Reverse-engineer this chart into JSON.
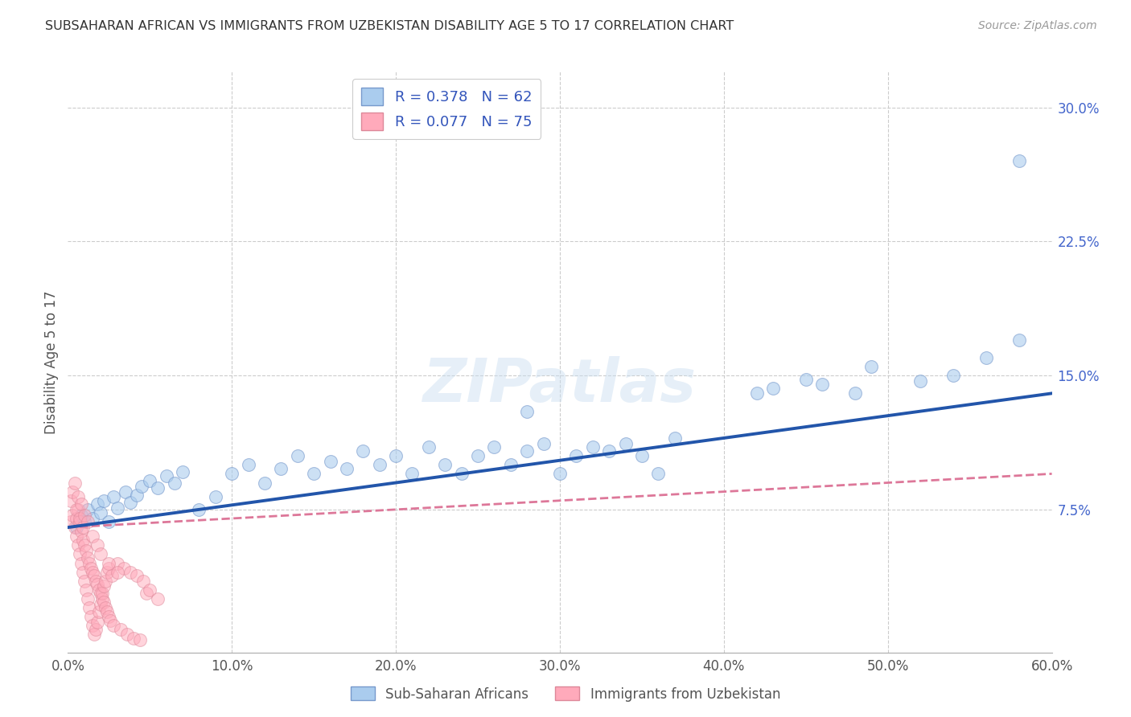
{
  "title": "SUBSAHARAN AFRICAN VS IMMIGRANTS FROM UZBEKISTAN DISABILITY AGE 5 TO 17 CORRELATION CHART",
  "source": "Source: ZipAtlas.com",
  "ylabel": "Disability Age 5 to 17",
  "xlim": [
    0.0,
    0.6
  ],
  "ylim": [
    -0.005,
    0.32
  ],
  "xtick_labels": [
    "0.0%",
    "10.0%",
    "20.0%",
    "30.0%",
    "40.0%",
    "50.0%",
    "60.0%"
  ],
  "xtick_vals": [
    0.0,
    0.1,
    0.2,
    0.3,
    0.4,
    0.5,
    0.6
  ],
  "ytick_labels_right": [
    "7.5%",
    "15.0%",
    "22.5%",
    "30.0%"
  ],
  "ytick_vals_right": [
    0.075,
    0.15,
    0.225,
    0.3
  ],
  "background_color": "#ffffff",
  "grid_color": "#cccccc",
  "blue_color": "#aaccee",
  "blue_edge_color": "#7799cc",
  "pink_color": "#ffaabb",
  "pink_edge_color": "#dd8899",
  "blue_line_color": "#2255aa",
  "pink_line_color": "#dd7799",
  "legend_blue_label": "R = 0.378   N = 62",
  "legend_pink_label": "R = 0.077   N = 75",
  "legend1_label": "Sub-Saharan Africans",
  "legend2_label": "Immigrants from Uzbekistan",
  "watermark": "ZIPatlas",
  "blue_scatter_x": [
    0.005,
    0.008,
    0.01,
    0.012,
    0.015,
    0.018,
    0.02,
    0.022,
    0.025,
    0.028,
    0.03,
    0.035,
    0.038,
    0.042,
    0.045,
    0.05,
    0.055,
    0.06,
    0.065,
    0.07,
    0.08,
    0.09,
    0.1,
    0.11,
    0.12,
    0.13,
    0.14,
    0.15,
    0.16,
    0.17,
    0.18,
    0.19,
    0.2,
    0.21,
    0.22,
    0.23,
    0.24,
    0.25,
    0.26,
    0.27,
    0.28,
    0.29,
    0.3,
    0.31,
    0.32,
    0.33,
    0.34,
    0.35,
    0.36,
    0.37,
    0.42,
    0.43,
    0.45,
    0.46,
    0.48,
    0.49,
    0.52,
    0.54,
    0.56,
    0.58,
    0.28,
    0.58
  ],
  "blue_scatter_y": [
    0.065,
    0.072,
    0.068,
    0.075,
    0.07,
    0.078,
    0.073,
    0.08,
    0.068,
    0.082,
    0.076,
    0.085,
    0.079,
    0.083,
    0.088,
    0.091,
    0.087,
    0.094,
    0.09,
    0.096,
    0.075,
    0.082,
    0.095,
    0.1,
    0.09,
    0.098,
    0.105,
    0.095,
    0.102,
    0.098,
    0.108,
    0.1,
    0.105,
    0.095,
    0.11,
    0.1,
    0.095,
    0.105,
    0.11,
    0.1,
    0.108,
    0.112,
    0.095,
    0.105,
    0.11,
    0.108,
    0.112,
    0.105,
    0.095,
    0.115,
    0.14,
    0.143,
    0.148,
    0.145,
    0.14,
    0.155,
    0.147,
    0.15,
    0.16,
    0.17,
    0.13,
    0.27
  ],
  "pink_scatter_x": [
    0.002,
    0.003,
    0.004,
    0.005,
    0.005,
    0.006,
    0.006,
    0.007,
    0.007,
    0.008,
    0.008,
    0.009,
    0.009,
    0.01,
    0.01,
    0.011,
    0.011,
    0.012,
    0.012,
    0.013,
    0.013,
    0.014,
    0.014,
    0.015,
    0.015,
    0.016,
    0.016,
    0.017,
    0.017,
    0.018,
    0.018,
    0.019,
    0.019,
    0.02,
    0.02,
    0.021,
    0.021,
    0.022,
    0.022,
    0.023,
    0.023,
    0.024,
    0.024,
    0.025,
    0.025,
    0.026,
    0.027,
    0.028,
    0.03,
    0.032,
    0.034,
    0.036,
    0.038,
    0.04,
    0.042,
    0.044,
    0.046,
    0.048,
    0.05,
    0.055,
    0.002,
    0.003,
    0.004,
    0.005,
    0.006,
    0.007,
    0.008,
    0.009,
    0.01,
    0.012,
    0.015,
    0.018,
    0.02,
    0.025,
    0.03
  ],
  "pink_scatter_y": [
    0.068,
    0.072,
    0.065,
    0.07,
    0.06,
    0.075,
    0.055,
    0.068,
    0.05,
    0.063,
    0.045,
    0.058,
    0.04,
    0.055,
    0.035,
    0.052,
    0.03,
    0.048,
    0.025,
    0.045,
    0.02,
    0.042,
    0.015,
    0.04,
    0.01,
    0.038,
    0.005,
    0.035,
    0.008,
    0.033,
    0.012,
    0.03,
    0.018,
    0.028,
    0.022,
    0.025,
    0.028,
    0.023,
    0.032,
    0.02,
    0.035,
    0.018,
    0.04,
    0.015,
    0.042,
    0.013,
    0.038,
    0.01,
    0.045,
    0.008,
    0.042,
    0.005,
    0.04,
    0.003,
    0.038,
    0.002,
    0.035,
    0.028,
    0.03,
    0.025,
    0.08,
    0.085,
    0.09,
    0.075,
    0.082,
    0.07,
    0.078,
    0.065,
    0.072,
    0.068,
    0.06,
    0.055,
    0.05,
    0.045,
    0.04
  ]
}
